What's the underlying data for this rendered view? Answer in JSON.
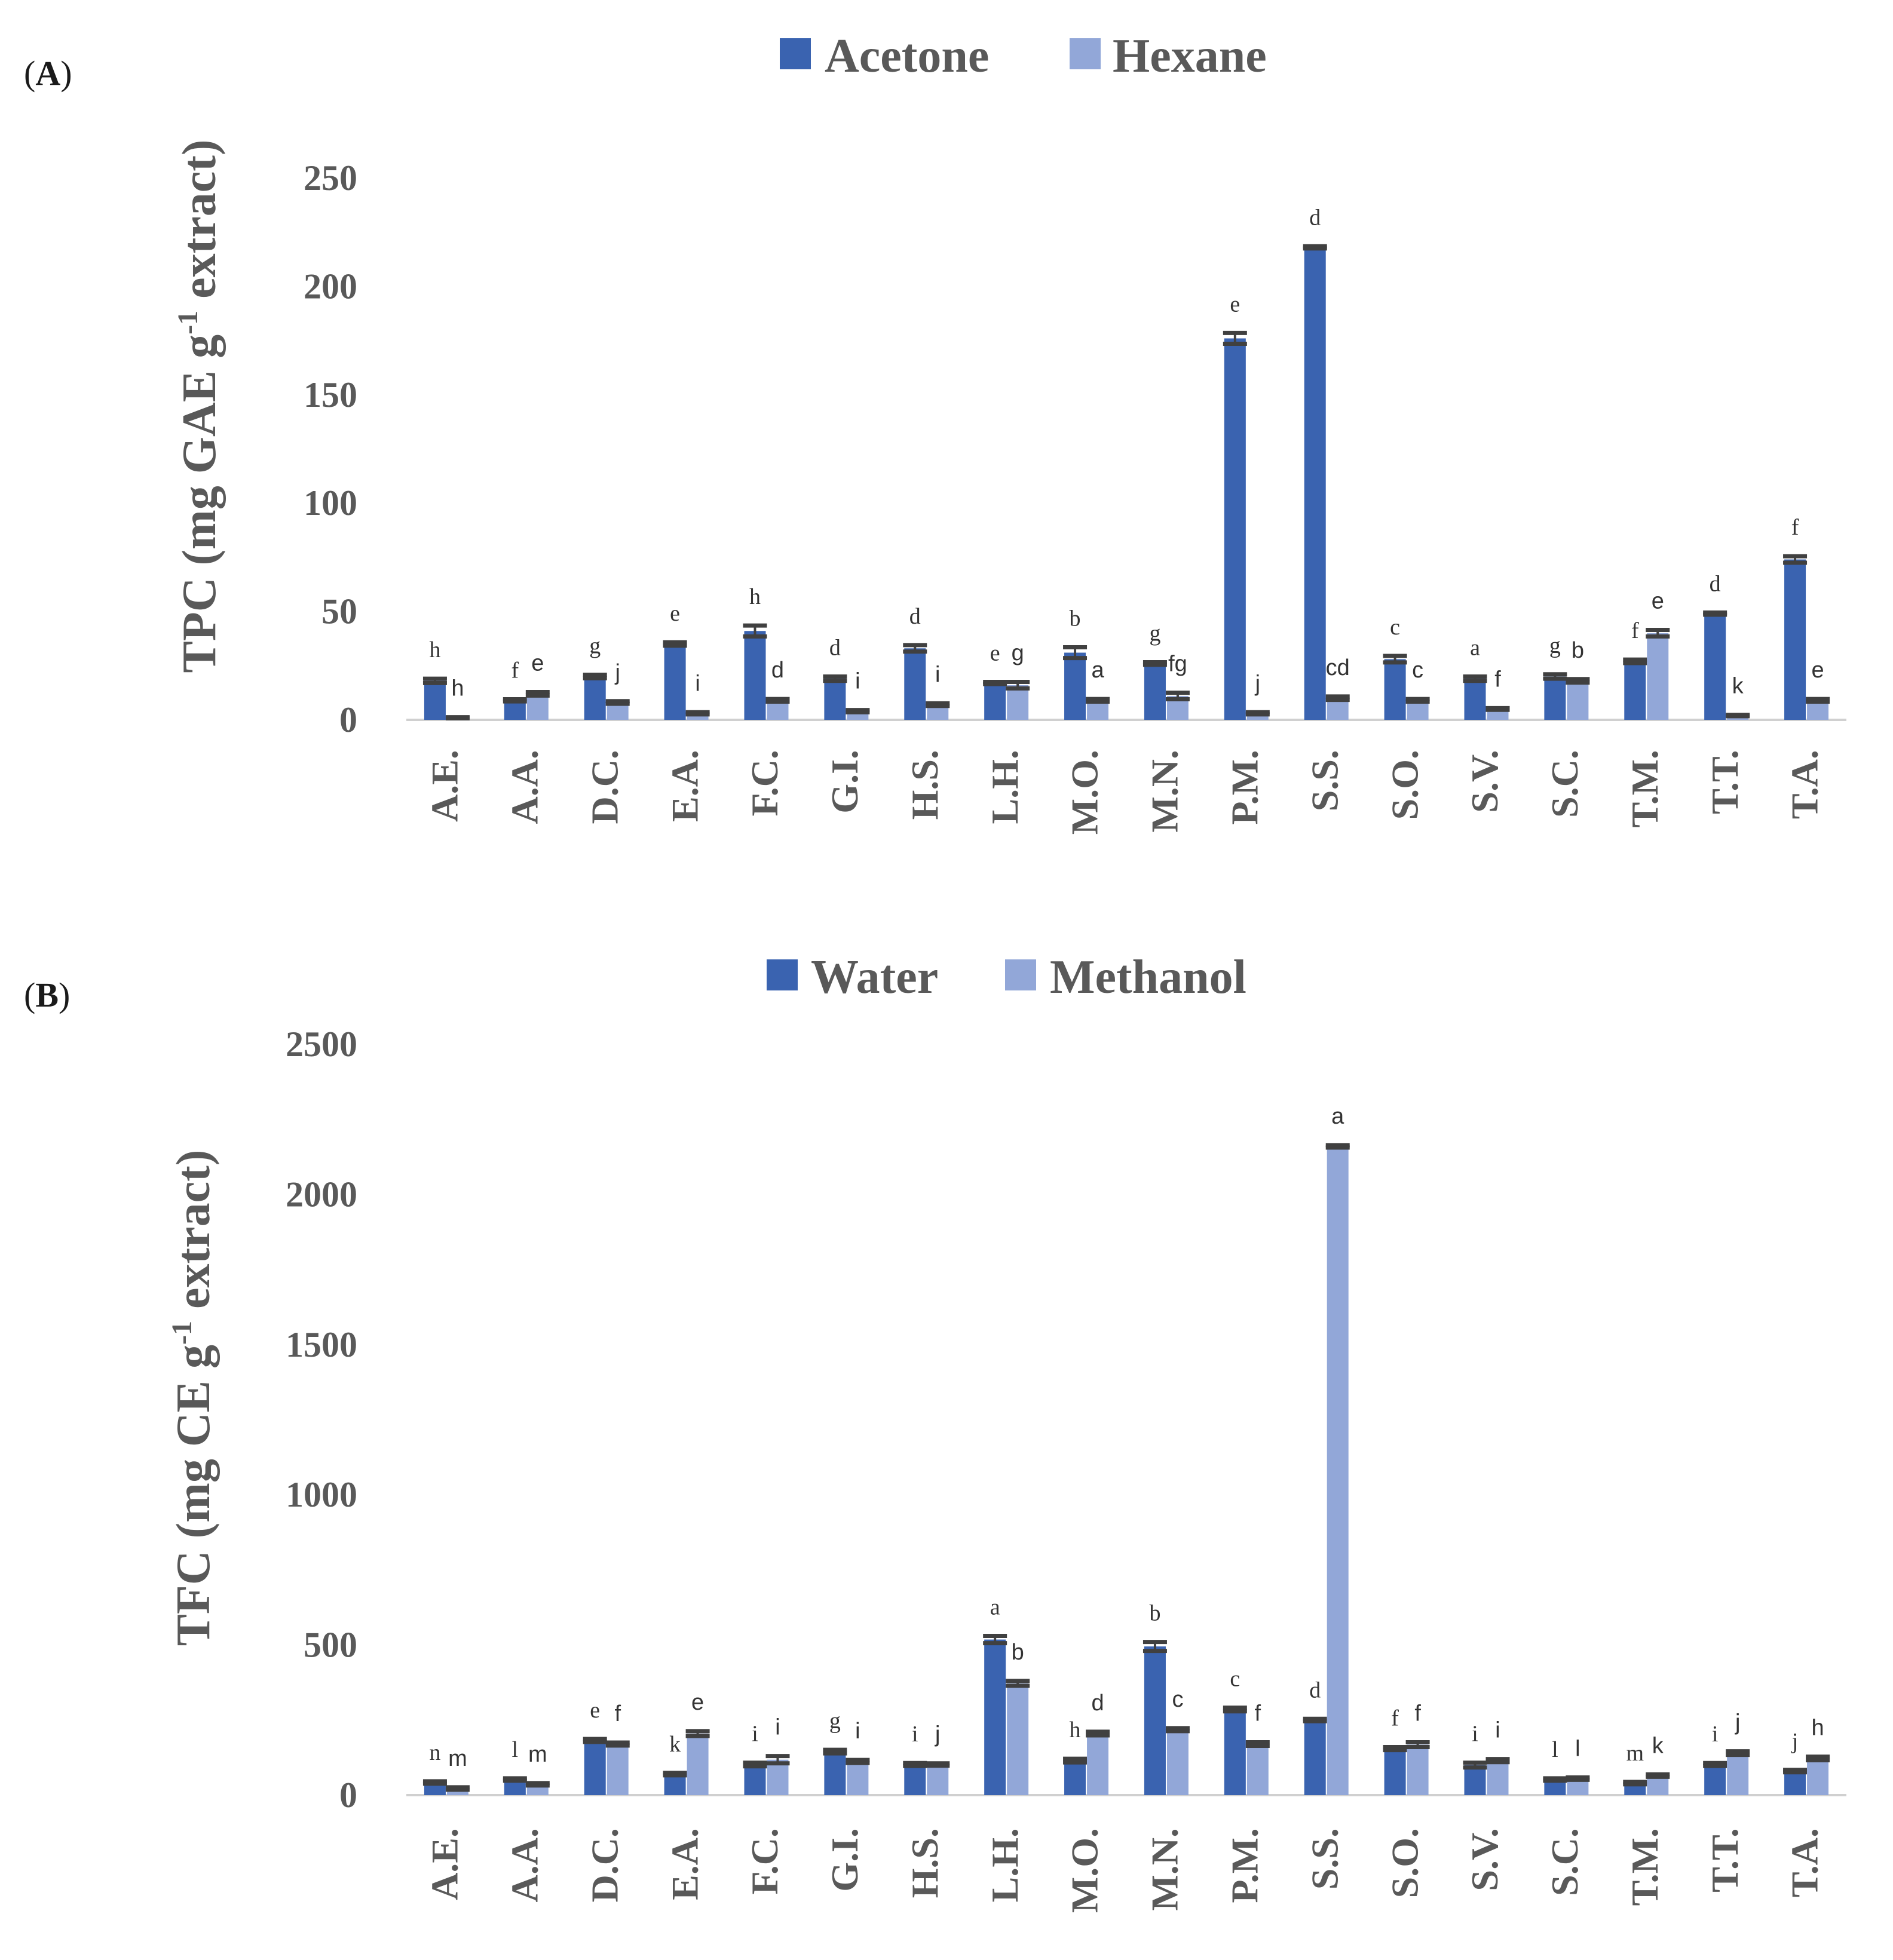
{
  "colors": {
    "dark": "#3a63b0",
    "light": "#92a7d8",
    "axis": "#d0d0d0",
    "err": "#404040",
    "text": "#595959"
  },
  "chart_data": [
    {
      "panel": "(A)",
      "panel_paren_open": "(",
      "panel_letter": "A",
      "panel_paren_close": ")",
      "type": "bar",
      "ylabel": "TPC (mg GAE g-1 extract)",
      "ylabel_parts": [
        "TPC (mg GAE g",
        "-1",
        " extract)"
      ],
      "ylim": [
        0,
        250
      ],
      "yticks": [
        0,
        50,
        100,
        150,
        200,
        250
      ],
      "categories": [
        "A.E.",
        "A.A.",
        "D.C.",
        "E.A.",
        "F.C.",
        "G.I.",
        "H.S.",
        "L.H.",
        "M.O.",
        "M.N.",
        "P.M.",
        "S.S.",
        "S.O.",
        "S.V.",
        "S.C.",
        "T.M.",
        "T.T.",
        "T.A."
      ],
      "series": [
        {
          "name": "Acetone",
          "values": [
            18,
            9,
            20,
            35,
            41,
            19,
            33,
            17,
            31,
            26,
            176,
            218,
            28,
            19,
            20,
            27,
            49,
            74
          ],
          "errors": [
            1,
            0.5,
            0.8,
            0.8,
            2.5,
            1,
            1.5,
            0.5,
            2.5,
            0.6,
            2.5,
            0.5,
            1.5,
            1,
            1,
            0.8,
            0.5,
            1.5
          ],
          "letters": [
            "h",
            "f",
            "g",
            "e",
            "h",
            "d",
            "d",
            "e",
            "b",
            "g",
            "e",
            "d",
            "c",
            "a",
            "g",
            "f",
            "d",
            "f"
          ]
        },
        {
          "name": "Hexane",
          "values": [
            1,
            12,
            8,
            3,
            9,
            4,
            7,
            16,
            9,
            11,
            3,
            10,
            9,
            5,
            18,
            40,
            2,
            9
          ],
          "errors": [
            0.2,
            0.8,
            0.6,
            0.5,
            0.6,
            0.5,
            0.6,
            1.5,
            0.6,
            1.5,
            0.5,
            0.8,
            0.6,
            0.4,
            0.8,
            1.5,
            0.3,
            0.6
          ],
          "letters": [
            "h",
            "e",
            "j",
            "i",
            "d",
            "i",
            "i",
            "g",
            "a",
            "fg",
            "j",
            "cd",
            "c",
            "f",
            "b",
            "e",
            "k",
            "e"
          ]
        }
      ]
    },
    {
      "panel": "(B)",
      "panel_paren_open": "(",
      "panel_letter": "B",
      "panel_paren_close": ")",
      "type": "bar",
      "ylabel": "TFC (mg CE g-1 extract)",
      "ylabel_parts": [
        "TFC (mg CE g",
        "-1",
        " extract)"
      ],
      "ylim": [
        0,
        2500
      ],
      "yticks": [
        0,
        500,
        1000,
        1500,
        2000,
        2500
      ],
      "categories": [
        "A.E.",
        "A.A.",
        "D.C.",
        "E.A.",
        "F.C.",
        "G.I.",
        "H.S.",
        "L.H.",
        "M.O.",
        "M.N.",
        "P.M.",
        "S.S.",
        "S.O.",
        "S.V.",
        "S.C.",
        "T.M.",
        "T.T.",
        "T.A."
      ],
      "series": [
        {
          "name": "Water",
          "values": [
            42,
            52,
            182,
            70,
            102,
            145,
            102,
            518,
            115,
            495,
            285,
            250,
            155,
            100,
            52,
            40,
            102,
            80
          ],
          "errors": [
            4,
            4,
            5,
            4,
            6,
            6,
            5,
            12,
            6,
            15,
            6,
            4,
            5,
            8,
            4,
            4,
            5,
            4
          ],
          "letters": [
            "n",
            "l",
            "e",
            "k",
            "i",
            "g",
            "i",
            "a",
            "h",
            "b",
            "c",
            "d",
            "f",
            "i",
            "l",
            "m",
            "i",
            "j"
          ]
        },
        {
          "name": "Methanol",
          "values": [
            22,
            36,
            170,
            205,
            118,
            112,
            102,
            372,
            205,
            218,
            170,
            2160,
            168,
            115,
            55,
            65,
            140,
            122
          ],
          "errors": [
            4,
            4,
            5,
            8,
            12,
            5,
            4,
            8,
            6,
            5,
            6,
            4,
            8,
            5,
            4,
            4,
            6,
            6
          ],
          "letters": [
            "m",
            "m",
            "f",
            "e",
            "i",
            "i",
            "j",
            "b",
            "d",
            "c",
            "f",
            "a",
            "f",
            "i",
            "l",
            "k",
            "j",
            "h"
          ]
        }
      ]
    }
  ]
}
